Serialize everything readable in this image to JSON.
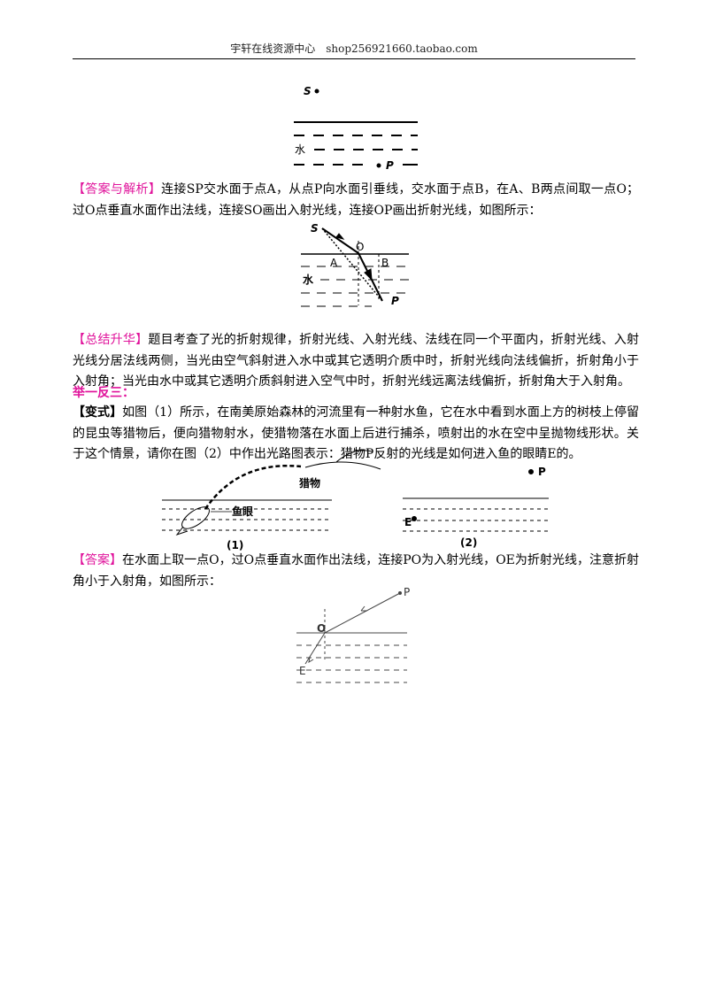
{
  "header": {
    "title": "宇轩在线资源中心　shop256921660.taobao.com"
  },
  "figure1": {
    "labels": [
      "S",
      "水",
      "P"
    ]
  },
  "answer1": {
    "label": "【答案与解析】",
    "text": "连接SP交水面于点A，从点P向水面引垂线，交水面于点B，在A、B两点间取一点O；过O点垂直水面作出法线，连接SO画出入射光线，连接OP画出折射光线，如图所示："
  },
  "figure2": {
    "labels": [
      "S",
      "O",
      "A",
      "B",
      "水",
      "P"
    ]
  },
  "summary": {
    "label": "【总结升华】",
    "text": "题目考查了光的折射规律，折射光线、入射光线、法线在同一个平面内，折射光线、入射光线分居法线两侧，当光由空气斜射进入水中或其它透明介质中时，折射光线向法线偏折，折射角小于入射角；当光由水中或其它透明介质斜射进入空气中时，折射光线远离法线偏折，折射角大于入射角。"
  },
  "practice": {
    "title": "举一反三："
  },
  "variant": {
    "label": "【变式】",
    "text": "如图（1）所示，在南美原始森林的河流里有一种射水鱼，它在水中看到水面上方的树枝上停留的昆虫等猎物后，便向猎物射水，使猎物落在水面上后进行捕杀，喷射出的水在空中呈抛物线形状。关于这个情景，请你在图（2）中作出光路图表示：猎物P反射的光线是如何进入鱼的眼睛E的。"
  },
  "figure3": {
    "labels": [
      "猎物",
      "鱼眼",
      "(1)",
      "P",
      "E",
      "(2)"
    ]
  },
  "answer2": {
    "label": "【答案】",
    "text": "在水面上取一点O，过O点垂直水面作出法线，连接PO为入射光线，OE为折射光线，注意折射角小于入射角，如图所示："
  },
  "figure4": {
    "labels": [
      "P",
      "O",
      "E"
    ]
  }
}
